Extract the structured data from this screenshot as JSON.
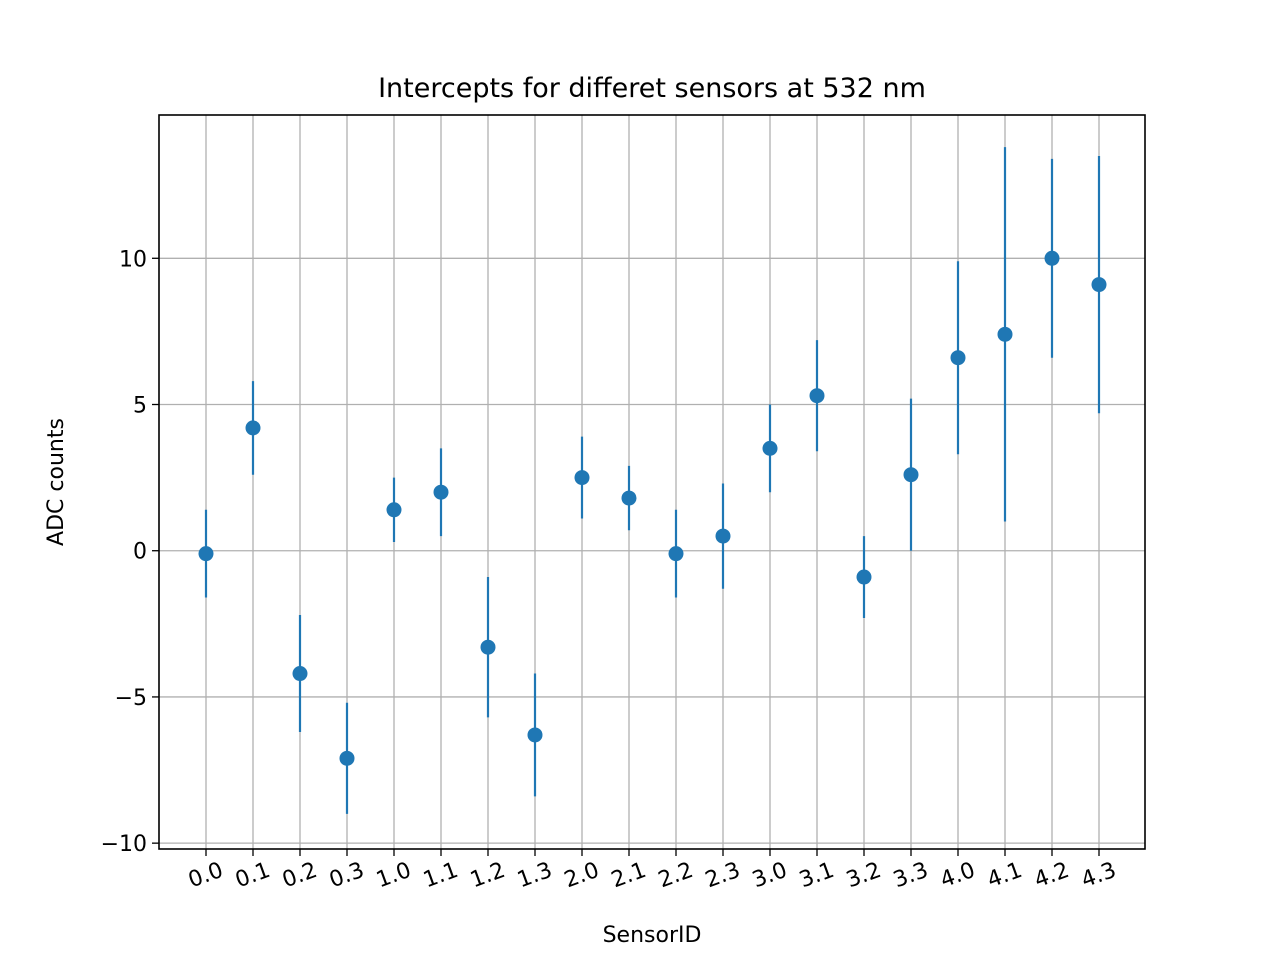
{
  "chart_data": {
    "type": "scatter",
    "title": "Intercepts for differet sensors at 532 nm",
    "xlabel": "SensorID",
    "ylabel": "ADC counts",
    "categories": [
      "0.0",
      "0.1",
      "0.2",
      "0.3",
      "1.0",
      "1.1",
      "1.2",
      "1.3",
      "2.0",
      "2.1",
      "2.2",
      "2.3",
      "3.0",
      "3.1",
      "3.2",
      "3.3",
      "4.0",
      "4.1",
      "4.2",
      "4.3"
    ],
    "series": [
      {
        "values": [
          -0.1,
          4.2,
          -4.2,
          -7.1,
          1.4,
          2.0,
          -3.3,
          -6.3,
          2.5,
          1.8,
          -0.1,
          0.5,
          3.5,
          5.3,
          -0.9,
          2.6,
          6.6,
          7.4,
          10.0,
          9.1
        ],
        "errors": [
          1.5,
          1.6,
          2.0,
          1.9,
          1.1,
          1.5,
          2.4,
          2.1,
          1.4,
          1.1,
          1.5,
          1.8,
          1.5,
          1.9,
          1.4,
          2.6,
          3.3,
          6.4,
          3.4,
          4.4
        ],
        "color": "#1f77b4"
      }
    ],
    "y_ticks": [
      -10,
      -5,
      0,
      5,
      10
    ],
    "y_tick_labels": [
      "−10",
      "−5",
      "0",
      "5",
      "10"
    ],
    "ylim": [
      -10.2,
      14.9
    ],
    "grid": true,
    "x_tick_rotation_deg": 20
  }
}
